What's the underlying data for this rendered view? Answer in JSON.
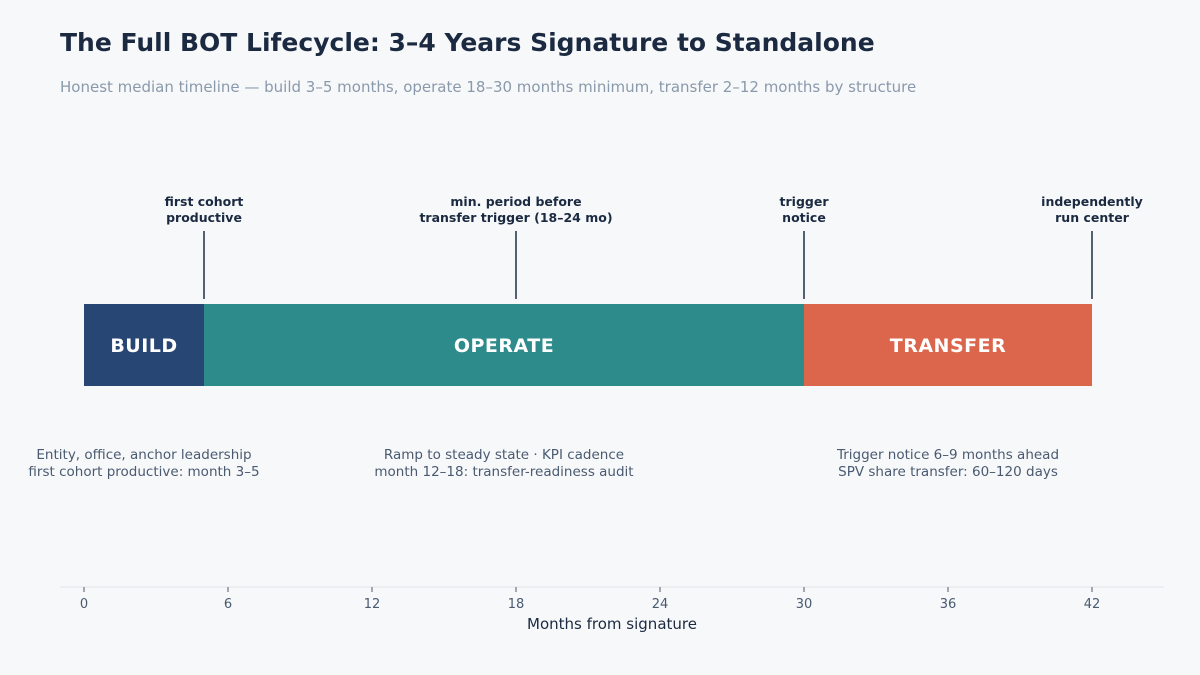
{
  "title": "The Full BOT Lifecycle: 3–4 Years Signature to Standalone",
  "subtitle": "Honest median timeline — build 3–5 months, operate 18–30 months minimum, transfer 2–12 months by structure",
  "chart_data": {
    "type": "bar",
    "orientation": "horizontal-timeline",
    "xlabel": "Months from signature",
    "xlim": [
      -1,
      45
    ],
    "xticks": [
      0,
      6,
      12,
      18,
      24,
      30,
      36,
      42
    ],
    "grid": false,
    "phases": [
      {
        "label": "BUILD",
        "start": 0,
        "end": 5,
        "color": "#284674",
        "note": [
          "Entity, office, anchor leadership",
          "first cohort productive: month 3–5"
        ]
      },
      {
        "label": "OPERATE",
        "start": 5,
        "end": 30,
        "color": "#2e8b8b",
        "note": [
          "Ramp to steady state · KPI cadence",
          "month 12–18: transfer-readiness audit"
        ]
      },
      {
        "label": "TRANSFER",
        "start": 30,
        "end": 42,
        "color": "#dc664b",
        "note": [
          "Trigger notice 6–9 months ahead",
          "SPV share transfer: 60–120 days"
        ]
      }
    ],
    "milestones": [
      {
        "x": 5,
        "label": [
          "first cohort",
          "productive"
        ]
      },
      {
        "x": 18,
        "label": [
          "min. period before",
          "transfer trigger (18–24 mo)"
        ]
      },
      {
        "x": 30,
        "label": [
          "trigger",
          "notice"
        ]
      },
      {
        "x": 42,
        "label": [
          "independently",
          "run center"
        ]
      }
    ]
  }
}
